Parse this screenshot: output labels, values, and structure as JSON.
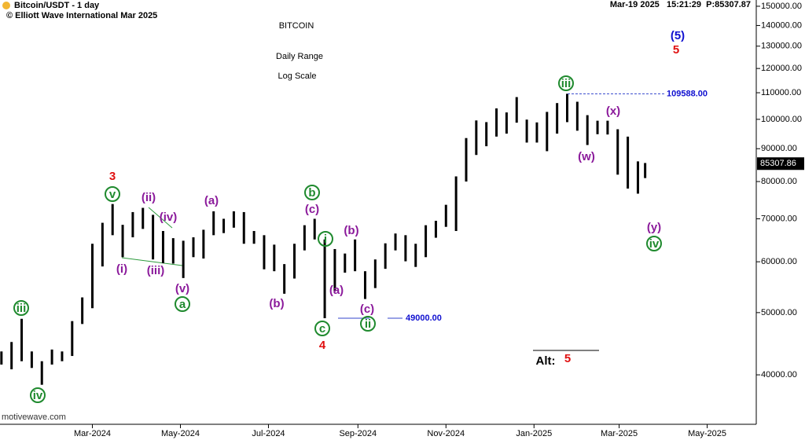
{
  "chart_data": {
    "type": "ohlc",
    "header": "Bitcoin/USDT - 1 day",
    "copyright": "© Elliott Wave International Mar 2025",
    "timestamp": "Mar-19 2025   15:21:29  P:85307.87",
    "title": "BITCOIN",
    "subtitle": "Daily Range",
    "subtitle2": "Log Scale",
    "source": "motivewave.com",
    "color": "#000000",
    "log_scale": true,
    "x": [
      -63,
      -56,
      -49,
      -42,
      -35,
      -28,
      -21,
      -14,
      -7,
      0,
      7,
      14,
      21,
      28,
      35,
      42,
      49,
      56,
      63,
      70,
      77,
      84,
      91,
      98,
      105,
      112,
      119,
      126,
      133,
      140,
      147,
      154,
      161,
      168,
      175,
      182,
      189,
      196,
      203,
      210,
      217,
      224,
      231,
      238,
      245,
      252,
      259,
      266,
      273,
      280,
      287,
      294,
      301,
      308,
      315,
      322,
      329,
      336,
      343,
      350,
      357,
      364,
      371,
      378,
      383
    ],
    "high": [
      43500,
      45000,
      48900,
      43500,
      42000,
      43800,
      43500,
      48500,
      52800,
      64000,
      69000,
      73800,
      68500,
      71700,
      72800,
      71000,
      67000,
      65300,
      64700,
      65500,
      67300,
      71900,
      70000,
      71900,
      71700,
      67000,
      66000,
      63800,
      59500,
      64000,
      68400,
      70000,
      65000,
      62800,
      61800,
      65000,
      58000,
      60500,
      64100,
      66400,
      66000,
      64000,
      68400,
      69500,
      73600,
      81500,
      93500,
      99600,
      99000,
      104000,
      102500,
      108300,
      99900,
      98900,
      102700,
      106000,
      109588,
      106500,
      101500,
      99500,
      99500,
      96500,
      94000,
      86000,
      85500
    ],
    "low": [
      41500,
      40800,
      42000,
      41000,
      38600,
      41500,
      42000,
      42800,
      48000,
      50800,
      59000,
      66000,
      61000,
      65500,
      67500,
      60500,
      59700,
      59600,
      56600,
      61000,
      60700,
      66000,
      66500,
      67800,
      64000,
      64000,
      58400,
      58000,
      53500,
      56500,
      62500,
      65000,
      49000,
      54000,
      57700,
      58000,
      52500,
      54600,
      58500,
      62500,
      60100,
      58900,
      61000,
      65400,
      68000,
      67000,
      80000,
      88000,
      90800,
      94000,
      95000,
      98800,
      92000,
      92000,
      89200,
      95000,
      99000,
      96000,
      91200,
      94800,
      94700,
      82000,
      78000,
      76600,
      81000
    ],
    "last_price": {
      "value": 85307.86,
      "label": "85307.86"
    },
    "levels": [
      {
        "value": 109588,
        "label": "109588.00"
      },
      {
        "value": 49000,
        "label": "49000.00"
      }
    ],
    "xlim": [
      -64,
      460
    ],
    "xticks": [
      {
        "value": 0,
        "label": "Mar-2024"
      },
      {
        "value": 61,
        "label": "May-2024"
      },
      {
        "value": 122,
        "label": "Jul-2024"
      },
      {
        "value": 184,
        "label": "Sep-2024"
      },
      {
        "value": 245,
        "label": "Nov-2024"
      },
      {
        "value": 306,
        "label": "Jan-2025"
      },
      {
        "value": 365,
        "label": "Mar-2025"
      },
      {
        "value": 426,
        "label": "May-2025"
      }
    ],
    "ylim": [
      33500,
      153400
    ],
    "yticks": [
      {
        "value": 40000,
        "label": "40000.00"
      },
      {
        "value": 50000,
        "label": "50000.00"
      },
      {
        "value": 60000,
        "label": "60000.00"
      },
      {
        "value": 70000,
        "label": "70000.00"
      },
      {
        "value": 80000,
        "label": "80000.00"
      },
      {
        "value": 90000,
        "label": "90000.00"
      },
      {
        "value": 100000,
        "label": "100000.00"
      },
      {
        "value": 110000,
        "label": "110000.00"
      },
      {
        "value": 120000,
        "label": "120000.00"
      },
      {
        "value": 130000,
        "label": "130000.00"
      },
      {
        "value": 140000,
        "label": "140000.00"
      },
      {
        "value": 150000,
        "label": "150000.00"
      }
    ],
    "annotations": [
      {
        "text": "3",
        "color": "#e01010"
      },
      {
        "text": "v",
        "color": "#1f8a2e",
        "circled": true
      },
      {
        "text": "(ii)",
        "color": "#8b1a9b"
      },
      {
        "text": "(iv)",
        "color": "#8b1a9b"
      },
      {
        "text": "(i)",
        "color": "#8b1a9b"
      },
      {
        "text": "(iii)",
        "color": "#8b1a9b"
      },
      {
        "text": "(v)",
        "color": "#8b1a9b"
      },
      {
        "text": "a",
        "color": "#1f8a2e",
        "circled": true
      },
      {
        "text": "(a)",
        "color": "#8b1a9b"
      },
      {
        "text": "b",
        "color": "#1f8a2e",
        "circled": true
      },
      {
        "text": "(c)",
        "color": "#8b1a9b"
      },
      {
        "text": "i",
        "color": "#1f8a2e",
        "circled": true
      },
      {
        "text": "(b)",
        "color": "#8b1a9b"
      },
      {
        "text": "(a)",
        "color": "#8b1a9b"
      },
      {
        "text": "(b)",
        "color": "#8b1a9b"
      },
      {
        "text": "(c)",
        "color": "#8b1a9b"
      },
      {
        "text": "ii",
        "color": "#1f8a2e",
        "circled": true
      },
      {
        "text": "c",
        "color": "#1f8a2e",
        "circled": true
      },
      {
        "text": "4",
        "color": "#e01010"
      },
      {
        "text": "iii",
        "color": "#1f8a2e",
        "circled": true
      },
      {
        "text": "iv",
        "color": "#1f8a2e",
        "circled": true
      },
      {
        "text": "iii",
        "color": "#1f8a2e",
        "circled": true
      },
      {
        "text": "(x)",
        "color": "#8b1a9b"
      },
      {
        "text": "(w)",
        "color": "#8b1a9b"
      },
      {
        "text": "(y)",
        "color": "#8b1a9b"
      },
      {
        "text": "iv",
        "color": "#1f8a2e",
        "circled": true
      },
      {
        "text": "(5)",
        "color": "#1010d0"
      },
      {
        "text": "5",
        "color": "#e01010"
      },
      {
        "text": "Alt:",
        "color": "#000000"
      },
      {
        "text": "5",
        "color": "#e01010"
      }
    ]
  }
}
